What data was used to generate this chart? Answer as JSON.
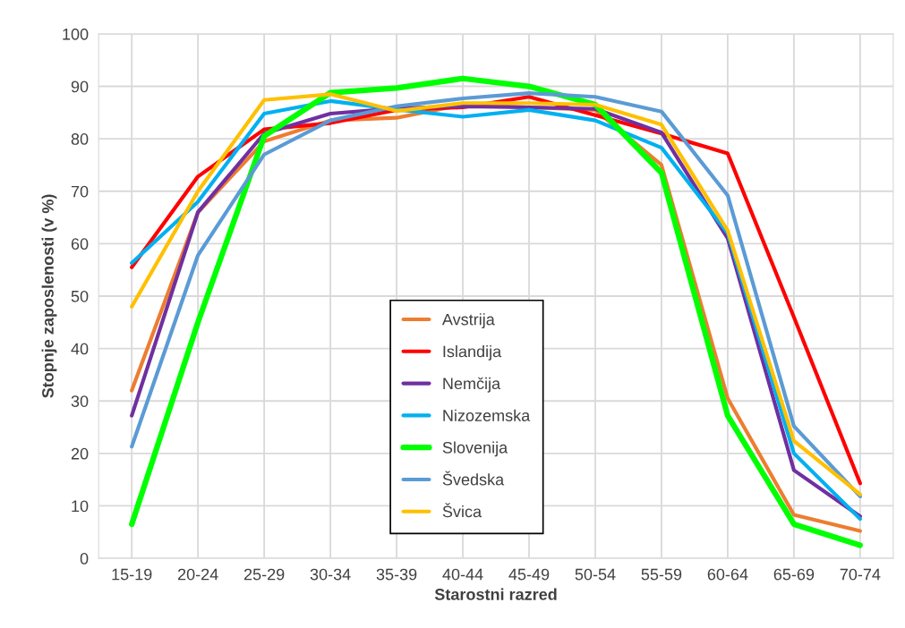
{
  "chart_data": {
    "type": "line",
    "xlabel": "Starostni razred",
    "ylabel": "Stopnje zaposlenosti (v %)",
    "categories": [
      "15-19",
      "20-24",
      "25-29",
      "30-34",
      "35-39",
      "40-44",
      "45-49",
      "50-54",
      "55-59",
      "60-64",
      "65-69",
      "70-74"
    ],
    "ylim": [
      0,
      100
    ],
    "yticks": [
      0,
      10,
      20,
      30,
      40,
      50,
      60,
      70,
      80,
      90,
      100
    ],
    "grid": true,
    "legend": "bottom",
    "marker": "none",
    "line_style": "solid",
    "series": [
      {
        "name": "Avstrija",
        "color": "#ed7d31",
        "values": [
          32,
          66,
          79.5,
          83.5,
          84,
          86.5,
          86,
          85.5,
          75,
          30.5,
          8.3,
          5.2
        ]
      },
      {
        "name": "Islandija",
        "color": "#ff0000",
        "values": [
          55.5,
          72.8,
          81.8,
          83,
          85.5,
          86,
          88,
          84.5,
          81,
          77.2,
          46,
          14.3
        ]
      },
      {
        "name": "Nemčija",
        "color": "#7030a0",
        "values": [
          27.2,
          66,
          81,
          84.8,
          85.8,
          86.2,
          86,
          85.7,
          81.2,
          61,
          16.8,
          8
        ]
      },
      {
        "name": "Nizozemska",
        "color": "#00b0f0",
        "values": [
          56.3,
          68,
          84.8,
          87.2,
          85.6,
          84.2,
          85.5,
          83.5,
          78.3,
          62,
          20,
          7.5
        ]
      },
      {
        "name": "Slovenija",
        "color": "#00ff00",
        "values": [
          6.5,
          45,
          80.5,
          88.8,
          89.7,
          91.5,
          90,
          86.5,
          73.5,
          27.2,
          6.5,
          2.5
        ]
      },
      {
        "name": "Švedska",
        "color": "#5b9bd5",
        "values": [
          21.3,
          57.8,
          77,
          83.5,
          86.2,
          87.7,
          88.7,
          88,
          85.2,
          69.2,
          25.2,
          11.8
        ]
      },
      {
        "name": "Švica",
        "color": "#ffc000",
        "values": [
          48,
          70,
          87.4,
          88.5,
          85.3,
          86.8,
          86.8,
          86.5,
          82.7,
          62.5,
          22.4,
          12.2
        ]
      }
    ]
  }
}
